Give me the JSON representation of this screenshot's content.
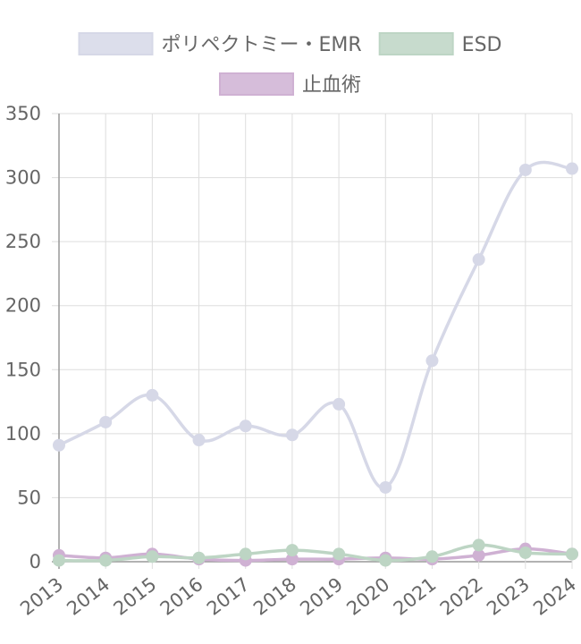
{
  "chart_data": {
    "type": "line",
    "categories": [
      "2013",
      "2014",
      "2015",
      "2016",
      "2017",
      "2018",
      "2019",
      "2020",
      "2021",
      "2022",
      "2023",
      "2024"
    ],
    "series": [
      {
        "name": "ポリペクトミー・EMR",
        "values": [
          91,
          109,
          130,
          95,
          106,
          99,
          123,
          58,
          157,
          236,
          306,
          307
        ],
        "color": "#d6d8e7"
      },
      {
        "name": "ESD",
        "values": [
          1,
          1,
          4,
          3,
          6,
          9,
          6,
          1,
          4,
          13,
          7,
          6
        ],
        "color": "#bdd5c4"
      },
      {
        "name": "止血術",
        "values": [
          5,
          3,
          6,
          2,
          1,
          2,
          2,
          3,
          2,
          5,
          10,
          6
        ],
        "color": "#cfb1d3"
      }
    ],
    "ylim": [
      0,
      350
    ],
    "yticks": [
      "0",
      "50",
      "100",
      "150",
      "200",
      "250",
      "300",
      "350"
    ],
    "grid": true,
    "legend_position": "top"
  }
}
